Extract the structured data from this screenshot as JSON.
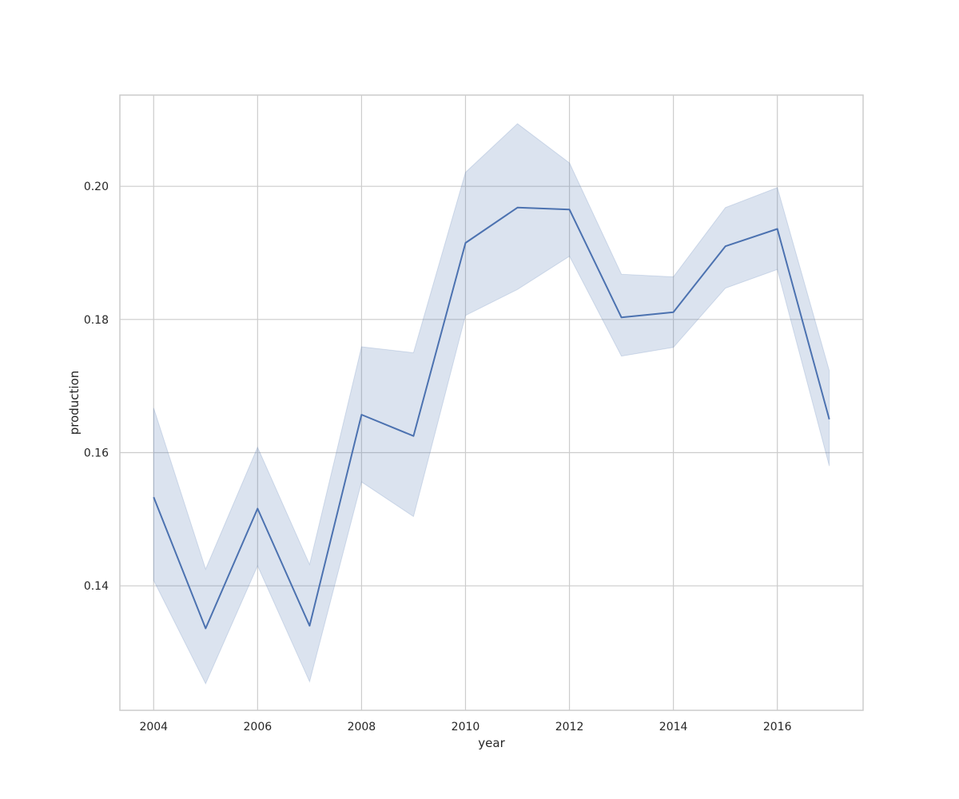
{
  "chart_data": {
    "type": "line",
    "title": "",
    "xlabel": "year",
    "ylabel": "production",
    "xlim": [
      2003.35,
      2017.65
    ],
    "ylim": [
      0.1213,
      0.2137
    ],
    "xticks": [
      2004,
      2006,
      2008,
      2010,
      2012,
      2014,
      2016
    ],
    "xtick_labels": [
      "2004",
      "2006",
      "2008",
      "2010",
      "2012",
      "2014",
      "2016"
    ],
    "yticks": [
      0.14,
      0.16,
      0.18,
      0.2
    ],
    "ytick_labels": [
      "0.14",
      "0.16",
      "0.18",
      "0.20"
    ],
    "grid": true,
    "legend": false,
    "colors": {
      "line": "#4c72b0",
      "band": "#4c72b0",
      "grid": "#cccccc",
      "frame": "#cccccc"
    },
    "series": [
      {
        "x": [
          2004,
          2005,
          2006,
          2007,
          2008,
          2009,
          2010,
          2011,
          2012,
          2013,
          2014,
          2015,
          2016,
          2017
        ],
        "values": [
          0.1533,
          0.1336,
          0.1516,
          0.134,
          0.1657,
          0.1625,
          0.1915,
          0.1968,
          0.1965,
          0.1803,
          0.1811,
          0.191,
          0.1936,
          0.165
        ],
        "ci_lower": [
          0.1408,
          0.1253,
          0.143,
          0.1256,
          0.1556,
          0.1504,
          0.1806,
          0.1845,
          0.1895,
          0.1745,
          0.1758,
          0.1847,
          0.1875,
          0.158
        ],
        "ci_upper": [
          0.1667,
          0.1425,
          0.1608,
          0.1432,
          0.1759,
          0.175,
          0.2021,
          0.2094,
          0.2035,
          0.1868,
          0.1864,
          0.1968,
          0.1998,
          0.1723
        ]
      }
    ]
  }
}
